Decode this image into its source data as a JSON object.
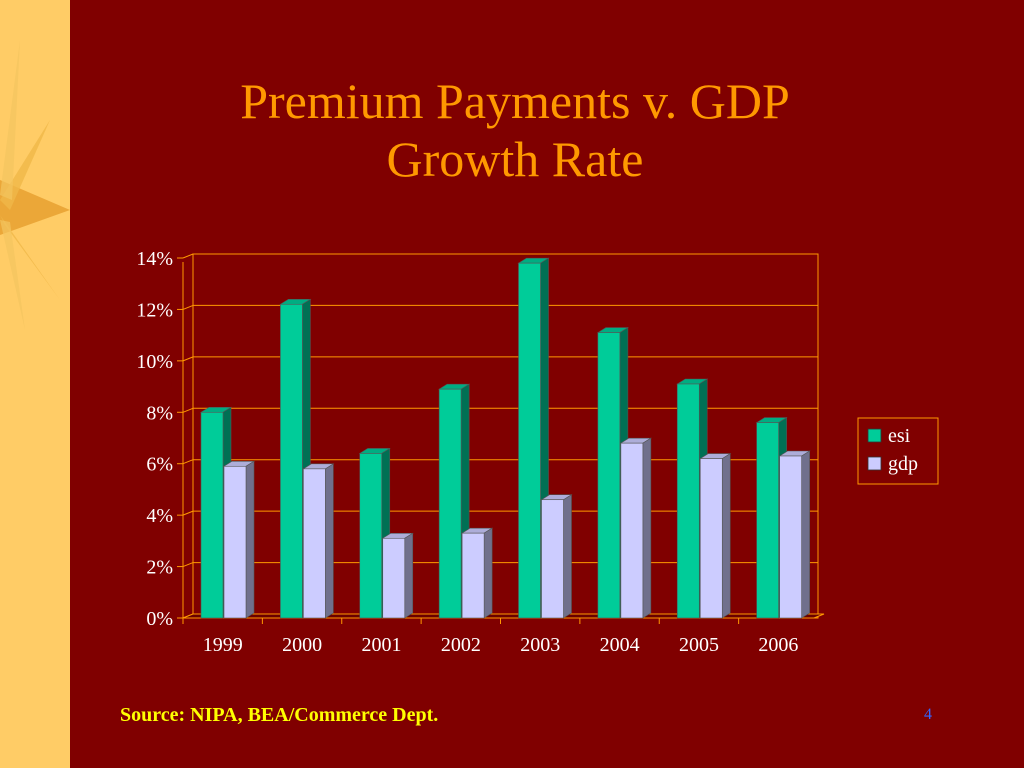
{
  "slide": {
    "title_line1": "Premium Payments v. GDP",
    "title_line2": "Growth Rate",
    "source": "Source: NIPA, BEA/Commerce Dept.",
    "page_number": "4"
  },
  "colors": {
    "background": "#800000",
    "side_band": "#FFCC66",
    "title": "#FF9900",
    "source_text": "#FFFF00",
    "page_number": "#3366FF",
    "grid": "#FF9900",
    "esi": "#00CC99",
    "gdp": "#CCCCFF"
  },
  "chart_data": {
    "type": "bar",
    "title": "",
    "xlabel": "",
    "ylabel": "",
    "categories": [
      "1999",
      "2000",
      "2001",
      "2002",
      "2003",
      "2004",
      "2005",
      "2006"
    ],
    "series": [
      {
        "name": "esi",
        "values": [
          8.0,
          12.2,
          6.4,
          8.9,
          13.8,
          11.1,
          9.1,
          7.6
        ]
      },
      {
        "name": "gdp",
        "values": [
          5.9,
          5.8,
          3.1,
          3.3,
          4.6,
          6.8,
          6.2,
          6.3
        ]
      }
    ],
    "ylim": [
      0,
      14
    ],
    "y_ticks": [
      "0%",
      "2%",
      "4%",
      "6%",
      "8%",
      "10%",
      "12%",
      "14%"
    ],
    "grid": true,
    "legend_position": "right",
    "style": "3d-clustered-column"
  }
}
